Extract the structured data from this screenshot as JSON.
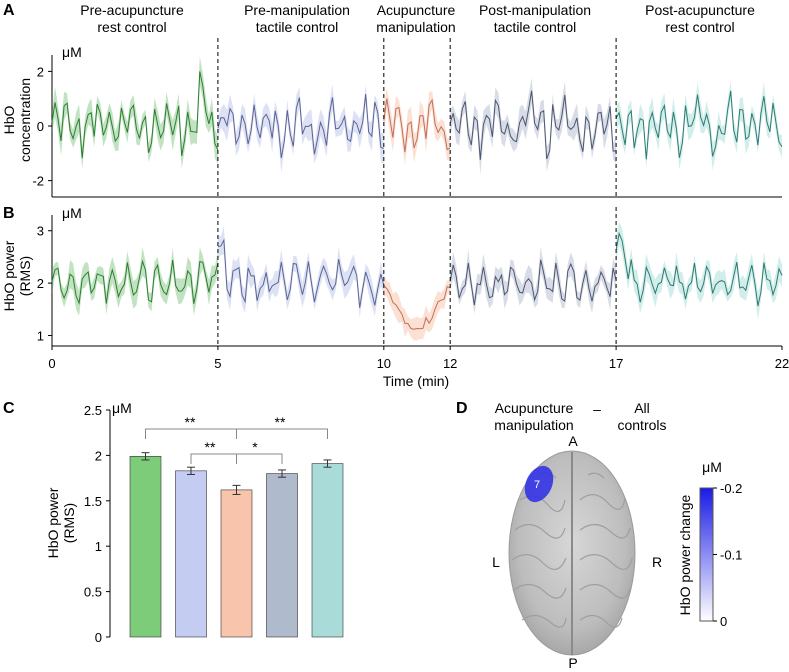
{
  "panels": {
    "a": "A",
    "b": "B",
    "c": "C",
    "d": "D"
  },
  "segments": [
    {
      "line1": "Pre-acupuncture",
      "line2": "rest control",
      "start_min": 0,
      "end_min": 5,
      "color": "#4caf50"
    },
    {
      "line1": "Pre-manipulation",
      "line2": "tactile control",
      "start_min": 5,
      "end_min": 10,
      "color": "#9fa8e0"
    },
    {
      "line1": "Acupuncture",
      "line2": "manipulation",
      "start_min": 10,
      "end_min": 12,
      "color": "#f4a582"
    },
    {
      "line1": "Post-manipulation",
      "line2": "tactile control",
      "start_min": 12,
      "end_min": 17,
      "color": "#8e9ab8"
    },
    {
      "line1": "Post-acupuncture",
      "line2": "rest control",
      "start_min": 17,
      "end_min": 22,
      "color": "#7ecdc4"
    }
  ],
  "chart_data": [
    {
      "id": "A",
      "type": "line",
      "ylabel_line1": "HbO",
      "ylabel_line2": "concentration",
      "unit": "μM",
      "ylim": [
        -2.6,
        2.6
      ],
      "yticks": [
        "2",
        "0",
        "-2"
      ],
      "ytick_values": [
        2,
        0,
        -2
      ],
      "x_range_min": [
        0,
        22
      ],
      "samples": 240,
      "dashed_lines_at_min": [
        5,
        10,
        12,
        17
      ],
      "line_colors": [
        "#2e7d32",
        "#5c6494",
        "#c0705a",
        "#4d5670",
        "#2f7a73"
      ]
    },
    {
      "id": "B",
      "type": "line",
      "ylabel_line1": "HbO power",
      "ylabel_line2": "(RMS)",
      "unit": "μM",
      "ylim": [
        0.8,
        3.3
      ],
      "yticks": [
        "3",
        "2",
        "1"
      ],
      "ytick_values": [
        3,
        2,
        1
      ],
      "x_range_min": [
        0,
        22
      ],
      "xticks": [
        "0",
        "5",
        "10",
        "12",
        "17",
        "22"
      ],
      "xtick_values": [
        0,
        5,
        10,
        12,
        17,
        22
      ],
      "xlabel": "Time (min)",
      "samples": 240,
      "dashed_lines_at_min": [
        5,
        10,
        12,
        17
      ],
      "line_colors": [
        "#2e7d32",
        "#5c6494",
        "#c0705a",
        "#4d5670",
        "#2f7a73"
      ]
    },
    {
      "id": "C",
      "type": "bar",
      "unit": "μM",
      "ylabel_line1": "HbO power",
      "ylabel_line2": "(RMS)",
      "ylim": [
        0,
        2.5
      ],
      "yticks": [
        "2.5",
        "2",
        "1.5",
        "1",
        "0.5",
        "0"
      ],
      "ytick_values": [
        2.5,
        2,
        1.5,
        1,
        0.5,
        0
      ],
      "values": [
        1.99,
        1.83,
        1.62,
        1.8,
        1.91
      ],
      "errors": [
        0.04,
        0.04,
        0.05,
        0.04,
        0.04
      ],
      "colors": [
        "#7ccc7a",
        "#c4ccf2",
        "#f8c4ab",
        "#b0bacd",
        "#a9dcd8"
      ],
      "significance": [
        {
          "from": 0,
          "to": 2,
          "label": "**",
          "level": 2
        },
        {
          "from": 1,
          "to": 2,
          "label": "**",
          "level": 1
        },
        {
          "from": 2,
          "to": 4,
          "label": "**",
          "level": 2
        },
        {
          "from": 2,
          "to": 3,
          "label": "*",
          "level": 1
        }
      ]
    }
  ],
  "brain": {
    "contrast_left_line1": "Acupuncture",
    "contrast_left_line2": "manipulation",
    "contrast_dash": "–",
    "contrast_right_line1": "All",
    "contrast_right_line2": "controls",
    "orient_a": "A",
    "orient_p": "P",
    "orient_l": "L",
    "orient_r": "R",
    "spot_label": "7",
    "colorbar_unit": "μM",
    "colorbar_title": "HbO power change",
    "colorbar_ticks": [
      "-0.2",
      "-0.1",
      "0"
    ],
    "colorbar_tick_values": [
      -0.2,
      -0.1,
      0
    ],
    "colorbar_range": [
      -0.2,
      0
    ],
    "colorbar_colors": [
      "#1a1ae6",
      "#ffffff"
    ]
  }
}
